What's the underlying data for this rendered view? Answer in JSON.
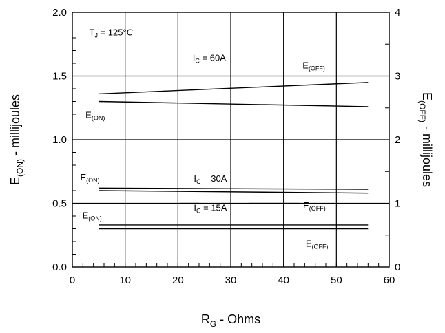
{
  "chart_data": {
    "type": "line",
    "x": {
      "label": "R",
      "label_subscript": "G",
      "label_suffix": " - Ohms",
      "range": [
        0,
        60
      ],
      "ticks": [
        0,
        10,
        20,
        30,
        40,
        50,
        60
      ],
      "tick_labels": [
        "0",
        "10",
        "20",
        "30",
        "40",
        "50",
        "60"
      ]
    },
    "y_left": {
      "label": "E",
      "label_subscript": "(ON)",
      "label_suffix": " - millijoules",
      "range": [
        0,
        2
      ],
      "ticks": [
        0,
        0.5,
        1,
        1.5,
        2
      ],
      "tick_labels": [
        "0.0",
        "0.5",
        "1.0",
        "1.5",
        "2.0"
      ]
    },
    "y_right": {
      "label": "E",
      "label_subscript": "(OFF)",
      "label_suffix": " - millijoules",
      "range": [
        0,
        4
      ],
      "ticks": [
        0,
        1,
        2,
        3,
        4
      ],
      "tick_labels": [
        "0",
        "1",
        "2",
        "3",
        "4"
      ]
    },
    "grid": true,
    "series": [
      {
        "axis": "left",
        "x": [
          5,
          56
        ],
        "y": [
          1.36,
          1.45
        ]
      },
      {
        "axis": "left",
        "x": [
          5,
          56
        ],
        "y": [
          1.3,
          1.26
        ]
      },
      {
        "axis": "left",
        "x": [
          5,
          56
        ],
        "y": [
          0.62,
          0.61
        ]
      },
      {
        "axis": "left",
        "x": [
          5,
          56
        ],
        "y": [
          0.6,
          0.58
        ]
      },
      {
        "axis": "left",
        "x": [
          5,
          56
        ],
        "y": [
          0.33,
          0.33
        ]
      },
      {
        "axis": "left",
        "x": [
          5,
          56
        ],
        "y": [
          0.3,
          0.3
        ]
      }
    ],
    "annotations": [
      {
        "text": "T",
        "sub": "J",
        "suffix": " = 125°C",
        "x": 3.2,
        "y": 1.82
      },
      {
        "text": "I",
        "sub": "C",
        "suffix": " = 60A",
        "x": 22.8,
        "y": 1.62
      },
      {
        "text": "E",
        "sub": "(OFF)",
        "suffix": "",
        "x": 43.6,
        "y": 1.56
      },
      {
        "text": "E",
        "sub": "(ON)",
        "suffix": "",
        "x": 2.5,
        "y": 1.17
      },
      {
        "text": "E",
        "sub": "(ON)",
        "suffix": "",
        "x": 1.5,
        "y": 0.68
      },
      {
        "text": "I",
        "sub": "C",
        "suffix": " = 30A",
        "x": 23.0,
        "y": 0.67
      },
      {
        "text": "I",
        "sub": "C",
        "suffix": " = 15A",
        "x": 23.0,
        "y": 0.44
      },
      {
        "text": "E",
        "sub": "(OFF)",
        "suffix": "",
        "x": 43.7,
        "y": 0.46
      },
      {
        "text": "E",
        "sub": "(ON)",
        "suffix": "",
        "x": 1.9,
        "y": 0.38
      },
      {
        "text": "E",
        "sub": "(OFF)",
        "suffix": "",
        "x": 44.2,
        "y": 0.16
      }
    ],
    "leaders": [
      {
        "x": [
          20.5,
          24.0
        ],
        "y": 0.5
      },
      {
        "x": [
          33.5,
          43.0
        ],
        "y": 0.5
      }
    ]
  }
}
